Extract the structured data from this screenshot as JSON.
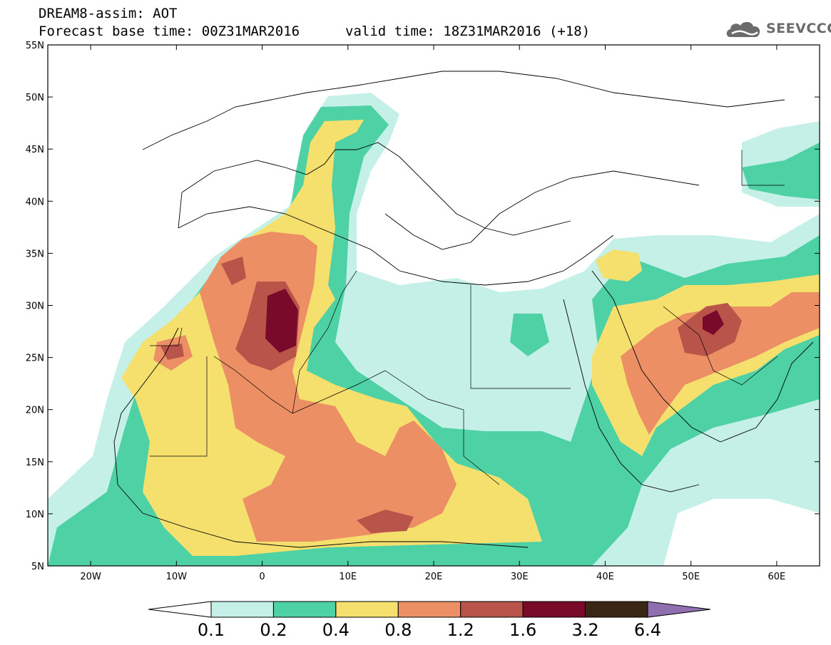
{
  "header": {
    "title": "DREAM8-assim: AOT",
    "base_time": "Forecast base time: 00Z31MAR2016",
    "valid_time": "valid time: 18Z31MAR2016 (+18)"
  },
  "logo": {
    "text": "SEEVCCC",
    "icon": "cloud-logo-icon"
  },
  "axes": {
    "y_labels": [
      "55N",
      "50N",
      "45N",
      "40N",
      "35N",
      "30N",
      "25N",
      "20N",
      "15N",
      "10N",
      "5N"
    ],
    "x_labels": [
      "20W",
      "10W",
      "0",
      "10E",
      "20E",
      "30E",
      "40E",
      "50E",
      "60E"
    ],
    "lat_range": [
      5,
      55
    ],
    "lon_range": [
      -25,
      65
    ]
  },
  "colorbar": {
    "labels": [
      "0.1",
      "0.2",
      "0.4",
      "0.8",
      "1.2",
      "1.6",
      "3.2",
      "6.4"
    ],
    "colors": [
      "#ffffff",
      "#c5f0e8",
      "#4fd1a6",
      "#f5e06e",
      "#ec8f64",
      "#b9544a",
      "#7a0a2a",
      "#3a2615",
      "#8f6fb0"
    ]
  }
}
